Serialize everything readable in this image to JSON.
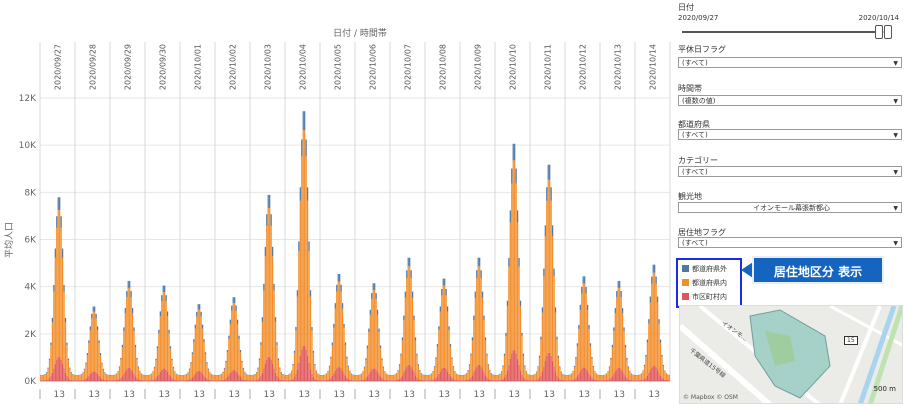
{
  "chart_data": {
    "type": "bar",
    "stacked": true,
    "title": "日付 / 時間帯",
    "ylabel": "平均人口",
    "ylim": [
      0,
      12000
    ],
    "yticks": [
      {
        "value": 0,
        "label": "0K"
      },
      {
        "value": 2000,
        "label": "2K"
      },
      {
        "value": 4000,
        "label": "4K"
      },
      {
        "value": 6000,
        "label": "6K"
      },
      {
        "value": 8000,
        "label": "8K"
      },
      {
        "value": 10000,
        "label": "10K"
      },
      {
        "value": 12000,
        "label": "12K"
      }
    ],
    "dates": [
      "2020/09/27",
      "2020/09/28",
      "2020/09/29",
      "2020/09/30",
      "2020/10/01",
      "2020/10/02",
      "2020/10/03",
      "2020/10/04",
      "2020/10/05",
      "2020/10/06",
      "2020/10/07",
      "2020/10/08",
      "2020/10/09",
      "2020/10/10",
      "2020/10/11",
      "2020/10/12",
      "2020/10/13",
      "2020/10/14"
    ],
    "hour_tick_label": "13",
    "daily_peak_total": [
      7900,
      3200,
      4300,
      4100,
      3300,
      3600,
      8000,
      11600,
      4600,
      4200,
      5300,
      4400,
      5300,
      10200,
      9300,
      4500,
      4300,
      5000
    ],
    "series": [
      {
        "name": "都道府県外",
        "color": "#4e79a7"
      },
      {
        "name": "都道府県内",
        "color": "#f28e2b"
      },
      {
        "name": "市区町村内",
        "color": "#e15759"
      }
    ],
    "series_share": [
      0.07,
      0.8,
      0.13
    ],
    "grid": true,
    "legend": "bottom-right"
  },
  "filters": {
    "date": {
      "title": "日付",
      "start": "2020/09/27",
      "end": "2020/10/14"
    },
    "weekday_flag": {
      "title": "平休日フラグ",
      "value": "(すべて)"
    },
    "time_band": {
      "title": "時間帯",
      "value": "(複数の値)"
    },
    "prefecture": {
      "title": "都道府県",
      "value": "(すべて)"
    },
    "category": {
      "title": "カテゴリー",
      "value": "(すべて)"
    },
    "spot": {
      "title": "観光地",
      "value": "イオンモール幕張新都心"
    },
    "residence_flag": {
      "title": "居住地フラグ",
      "value": "(すべて)"
    }
  },
  "legend": {
    "items": [
      {
        "label": "都道府県外",
        "color": "#4e79a7"
      },
      {
        "label": "都道府県内",
        "color": "#f28e2b"
      },
      {
        "label": "市区町村内",
        "color": "#e15759"
      }
    ]
  },
  "callout": {
    "text": "居住地区分 表示",
    "color": "#1565c0"
  },
  "map": {
    "credit": "© Mapbox © OSM",
    "scale": "500 m",
    "route": "15",
    "street1": "イオンモ...",
    "street2": "千葉県道15号線"
  }
}
